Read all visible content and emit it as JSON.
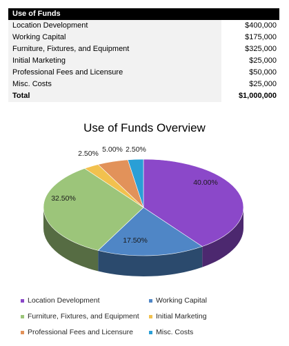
{
  "table": {
    "header": "Use of Funds",
    "rows": [
      {
        "label": "Location Development",
        "value": "$400,000"
      },
      {
        "label": "Working Capital",
        "value": "$175,000"
      },
      {
        "label": "Furniture, Fixtures, and Equipment",
        "value": "$325,000"
      },
      {
        "label": "Initial Marketing",
        "value": "$25,000"
      },
      {
        "label": "Professional Fees and Licensure",
        "value": "$50,000"
      },
      {
        "label": "Misc. Costs",
        "value": "$25,000"
      }
    ],
    "total": {
      "label": "Total",
      "value": "$1,000,000"
    }
  },
  "chart_data": {
    "type": "pie",
    "title": "Use of Funds Overview",
    "categories": [
      "Location Development",
      "Working Capital",
      "Furniture, Fixtures, and Equipment",
      "Initial Marketing",
      "Professional Fees and Licensure",
      "Misc. Costs"
    ],
    "values": [
      40.0,
      17.5,
      32.5,
      2.5,
      5.0,
      2.5
    ],
    "data_labels": [
      "40.00%",
      "17.50%",
      "32.50%",
      "2.50%",
      "5.00%",
      "2.50%"
    ],
    "colors": [
      "#8b48c9",
      "#4f86c6",
      "#9cc57a",
      "#f2c14e",
      "#e2925a",
      "#2a9fd6"
    ],
    "style": "3d",
    "legend_position": "bottom"
  }
}
